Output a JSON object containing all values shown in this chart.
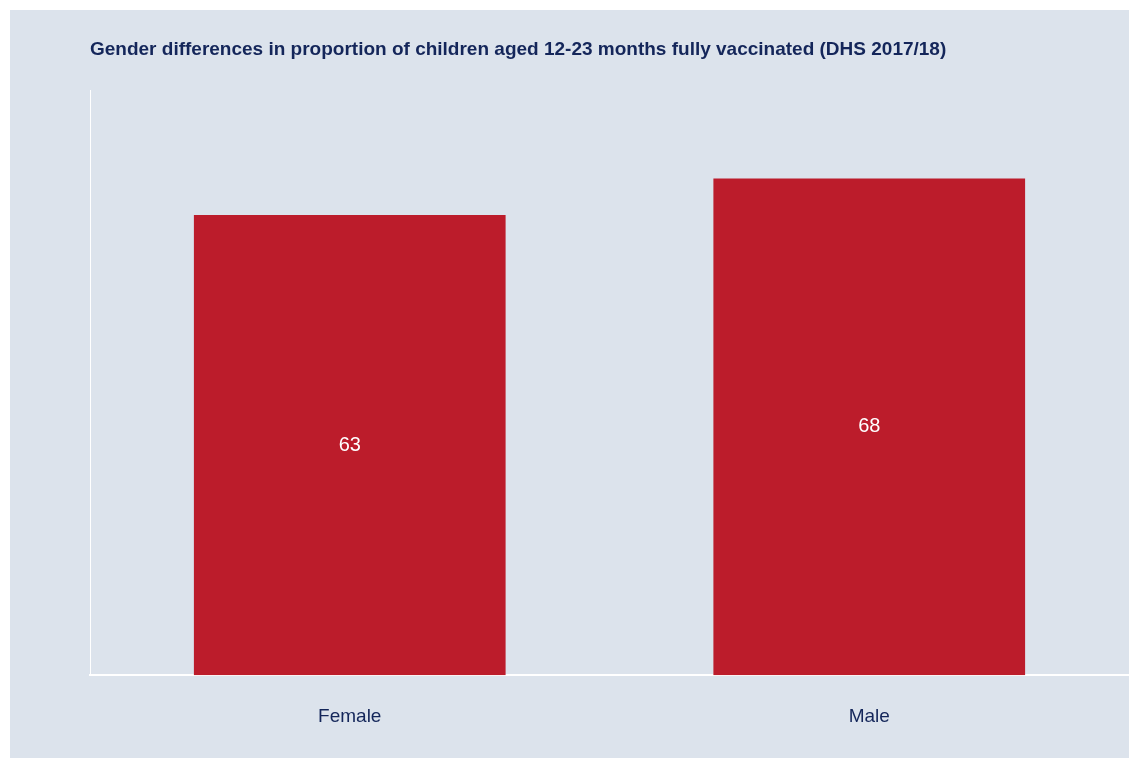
{
  "chart_data": {
    "type": "bar",
    "title": "Gender differences in proportion of children aged 12-23 months fully vaccinated (DHS 2017/18)",
    "categories": [
      "Female",
      "Male"
    ],
    "values": [
      63,
      68
    ],
    "color": "#bc1c2b",
    "data_labels": true,
    "grid": false,
    "legend": false,
    "tick_labels": "x"
  }
}
